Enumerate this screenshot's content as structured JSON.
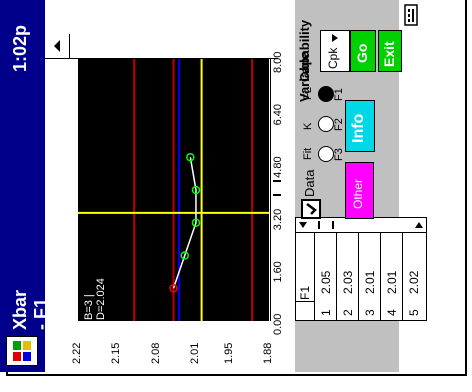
{
  "taskbar": {
    "title": "Xbar - F1",
    "time": "1:02p",
    "icon": "windows-start-icon",
    "colors": {
      "bar": "#00008b",
      "text": "#ffffff"
    }
  },
  "chart_data": {
    "type": "line",
    "title": "",
    "annotation": "B=3 | D=2.024",
    "x": [
      1,
      2,
      3,
      4,
      5
    ],
    "series": [
      {
        "values": [
          2.05,
          2.03,
          2.01,
          2.01,
          2.02
        ]
      }
    ],
    "xlabel": "",
    "ylabel": "",
    "xlim": [
      0.0,
      8.0
    ],
    "ylim": [
      1.88,
      2.22
    ],
    "x_ticks": [
      "0.00",
      "1.60",
      "3.20",
      "4.80",
      "6.40",
      "8.00"
    ],
    "y_ticks": [
      "2.22",
      "2.15",
      "2.08",
      "2.01",
      "1.95",
      "1.88"
    ],
    "reference_lines": {
      "red": [
        2.12,
        2.05,
        1.91
      ],
      "blue": [
        2.04
      ],
      "yellow_horizontal": [
        2.0
      ]
    },
    "yellow_vertical_x": 3.3,
    "colors": {
      "background": "#000000",
      "series": "#ffffff",
      "first_marker": "#ff0000",
      "markers": "#00ff00",
      "red": "#c00000",
      "blue": "#0000ff",
      "yellow": "#ffff00"
    }
  },
  "table": {
    "header": "F1",
    "rows": [
      {
        "index": "1",
        "value": "2.05"
      },
      {
        "index": "2",
        "value": "2.03"
      },
      {
        "index": "3",
        "value": "2.01"
      },
      {
        "index": "4",
        "value": "2.01"
      },
      {
        "index": "5",
        "value": "2.02"
      }
    ]
  },
  "variable": {
    "title": "Variable",
    "options": [
      "F1",
      "F2",
      "F3"
    ],
    "selected": "F1",
    "other_label": "Other",
    "checkbox_options": [
      "FL",
      "K",
      "Fit"
    ]
  },
  "capability": {
    "title": "Capability",
    "select_value": "Cpk",
    "go_label": "Go"
  },
  "buttons": {
    "data": "Data",
    "info": "Info",
    "exit": "Exit"
  },
  "data_checked": true,
  "icons": {
    "keyboard": "keyboard-icon",
    "chevron_up": "chevron-up-icon",
    "arrow_left": "arrow-left-icon",
    "arrow_right": "arrow-right-icon",
    "scroll_grip": "scroll-grip-icon",
    "dropdown": "triangle-down-icon"
  },
  "colors": {
    "go": "#00d000",
    "info": "#00d8e8",
    "exit": "#00d000",
    "other": "#ff00ff",
    "panel": "#c0c0c0"
  }
}
